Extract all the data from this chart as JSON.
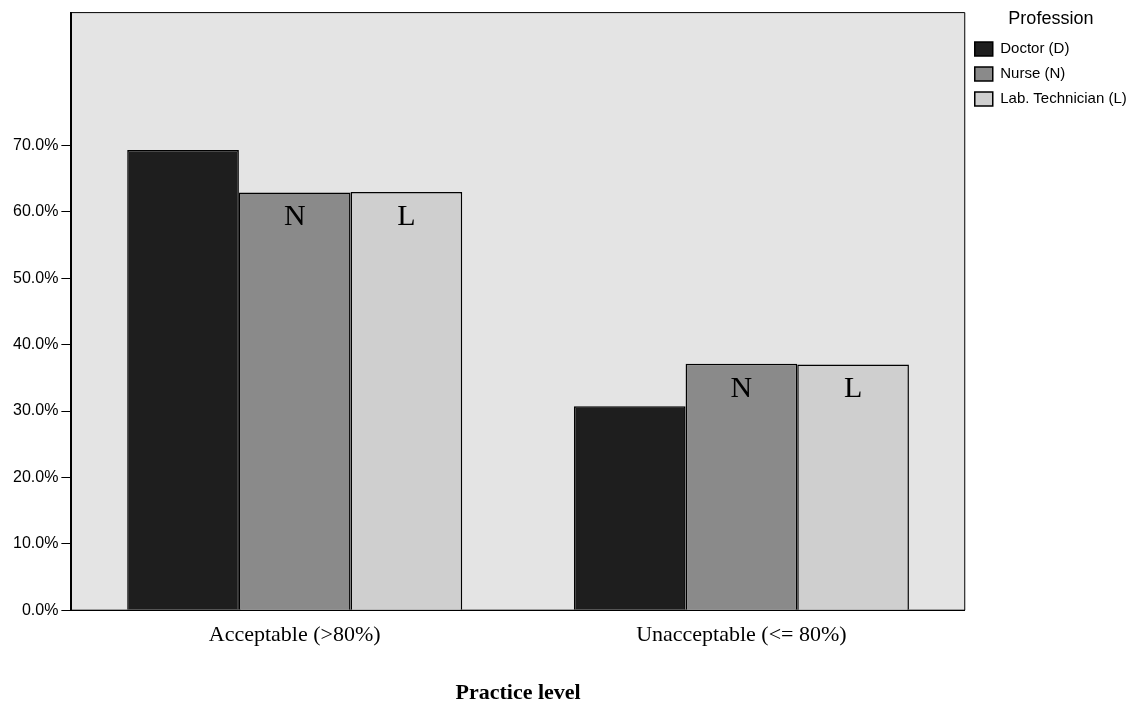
{
  "chart_data": {
    "type": "bar",
    "xlabel": "Practice level",
    "legend_title": "Profession",
    "legend": "right",
    "categories": [
      "Acceptable (>80%)",
      "Unacceptable (<= 80%)"
    ],
    "series": [
      {
        "name": "Doctor (D)",
        "color": "#1e1e1e",
        "values": [
          69.3,
          30.7
        ]
      },
      {
        "name": "Nurse (N)",
        "color": "#8a8a8a",
        "values": [
          62.9,
          37.1
        ],
        "value_labels": [
          "N",
          "N"
        ]
      },
      {
        "name": "Lab. Technician (L)",
        "color": "#cfcfcf",
        "values": [
          63.0,
          37.0
        ],
        "value_labels": [
          "L",
          "L"
        ]
      }
    ],
    "ylim": [
      0,
      90
    ],
    "yticks": [
      {
        "value": 0,
        "label": "0.0%"
      },
      {
        "value": 10,
        "label": "10.0%"
      },
      {
        "value": 20,
        "label": "20.0%"
      },
      {
        "value": 30,
        "label": "30.0%"
      },
      {
        "value": 40,
        "label": "40.0%"
      },
      {
        "value": 50,
        "label": "50.0%"
      },
      {
        "value": 60,
        "label": "60.0%"
      },
      {
        "value": 70,
        "label": "70.0%"
      }
    ],
    "grid": false
  }
}
